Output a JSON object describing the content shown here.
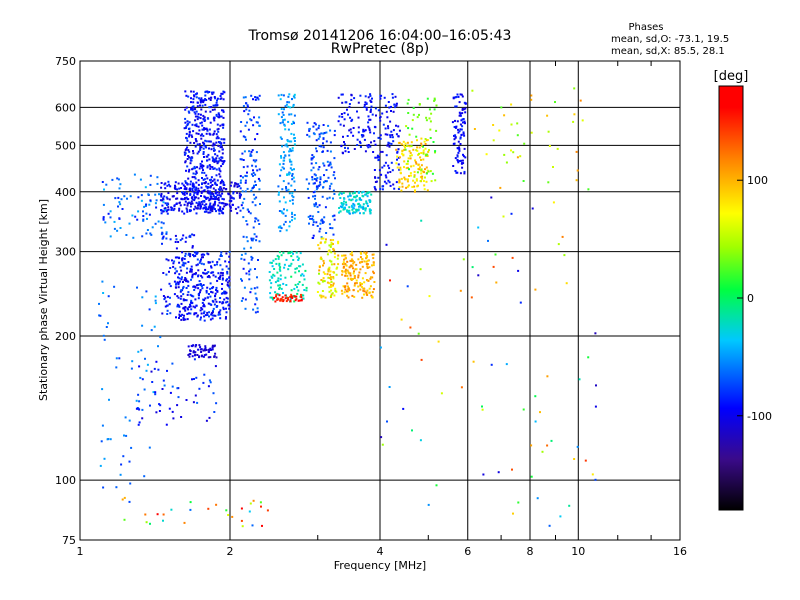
{
  "chart_data": {
    "type": "scatter",
    "title": "Tromsø 20141206 16:04:00–16:05:43",
    "subtitle": "RwPretec (8p)",
    "xlabel": "Frequency [MHz]",
    "ylabel": "Stationary phase Virtual Height [km]",
    "x_scale": "log",
    "y_scale": "log",
    "xlim": [
      1,
      16
    ],
    "ylim": [
      75,
      750
    ],
    "x_ticks": [
      1,
      2,
      4,
      6,
      8,
      10,
      16
    ],
    "y_ticks": [
      75,
      100,
      200,
      300,
      400,
      500,
      600,
      750
    ],
    "grid": true,
    "phases_box": {
      "heading": "Phases",
      "line_o": "mean, sd,O: -73.1, 19.5",
      "line_x": "mean, sd,X:  85.5, 28.1"
    },
    "colorbar": {
      "label": "[deg]",
      "range": [
        -180,
        180
      ],
      "ticks": [
        100,
        0,
        -100
      ],
      "tick_labels": [
        "100",
        "0",
        "-100"
      ]
    },
    "clusters": [
      {
        "f": [
          1.62,
          1.95
        ],
        "h": [
          360,
          650
        ],
        "phase": [
          -110,
          -75
        ],
        "n": 480
      },
      {
        "f": [
          1.45,
          2.1
        ],
        "h": [
          360,
          420
        ],
        "phase": [
          -115,
          -80
        ],
        "n": 240
      },
      {
        "f": [
          1.1,
          1.5
        ],
        "h": [
          320,
          440
        ],
        "phase": [
          -90,
          -40
        ],
        "n": 90
      },
      {
        "f": [
          1.55,
          2.0
        ],
        "h": [
          215,
          300
        ],
        "phase": [
          -110,
          -70
        ],
        "n": 320
      },
      {
        "f": [
          1.45,
          1.7
        ],
        "h": [
          220,
          330
        ],
        "phase": [
          -105,
          -70
        ],
        "n": 80
      },
      {
        "f": [
          1.65,
          1.88
        ],
        "h": [
          180,
          192
        ],
        "phase": [
          -120,
          -100
        ],
        "n": 60
      },
      {
        "f": [
          2.1,
          2.3
        ],
        "h": [
          220,
          640
        ],
        "phase": [
          -95,
          -55
        ],
        "n": 160
      },
      {
        "f": [
          2.4,
          2.85
        ],
        "h": [
          235,
          300
        ],
        "phase": [
          -40,
          0
        ],
        "n": 110
      },
      {
        "f": [
          2.45,
          2.8
        ],
        "h": [
          236,
          244
        ],
        "phase": [
          140,
          175
        ],
        "n": 40
      },
      {
        "f": [
          2.5,
          2.7
        ],
        "h": [
          330,
          640
        ],
        "phase": [
          -70,
          -30
        ],
        "n": 140
      },
      {
        "f": [
          2.85,
          3.25
        ],
        "h": [
          320,
          560
        ],
        "phase": [
          -90,
          -55
        ],
        "n": 150
      },
      {
        "f": [
          3.0,
          3.3
        ],
        "h": [
          240,
          320
        ],
        "phase": [
          40,
          110
        ],
        "n": 100
      },
      {
        "f": [
          3.35,
          3.9
        ],
        "h": [
          240,
          300
        ],
        "phase": [
          80,
          120
        ],
        "n": 160
      },
      {
        "f": [
          3.3,
          3.85
        ],
        "h": [
          360,
          400
        ],
        "phase": [
          -50,
          -10
        ],
        "n": 120
      },
      {
        "f": [
          3.3,
          3.9
        ],
        "h": [
          480,
          640
        ],
        "phase": [
          -110,
          -80
        ],
        "n": 100
      },
      {
        "f": [
          3.9,
          4.4
        ],
        "h": [
          400,
          640
        ],
        "phase": [
          -110,
          -80
        ],
        "n": 110
      },
      {
        "f": [
          4.3,
          5.0
        ],
        "h": [
          400,
          520
        ],
        "phase": [
          70,
          110
        ],
        "n": 120
      },
      {
        "f": [
          4.5,
          5.2
        ],
        "h": [
          420,
          640
        ],
        "phase": [
          10,
          60
        ],
        "n": 60
      },
      {
        "f": [
          5.6,
          5.95
        ],
        "h": [
          430,
          640
        ],
        "phase": [
          -110,
          -80
        ],
        "n": 90
      },
      {
        "f": [
          6.0,
          10.5
        ],
        "h": [
          400,
          660
        ],
        "phase": [
          20,
          120
        ],
        "n": 40
      },
      {
        "f": [
          1.08,
          1.45
        ],
        "h": [
          95,
          260
        ],
        "phase": [
          -80,
          -40
        ],
        "n": 60
      },
      {
        "f": [
          1.3,
          1.9
        ],
        "h": [
          130,
          180
        ],
        "phase": [
          -110,
          -60
        ],
        "n": 60
      },
      {
        "f": [
          1.2,
          2.5
        ],
        "h": [
          80,
          92
        ],
        "phase": [
          -80,
          180
        ],
        "n": 30
      },
      {
        "f": [
          4.0,
          11.0
        ],
        "h": [
          80,
          400
        ],
        "phase": [
          -120,
          160
        ],
        "n": 80
      }
    ]
  }
}
